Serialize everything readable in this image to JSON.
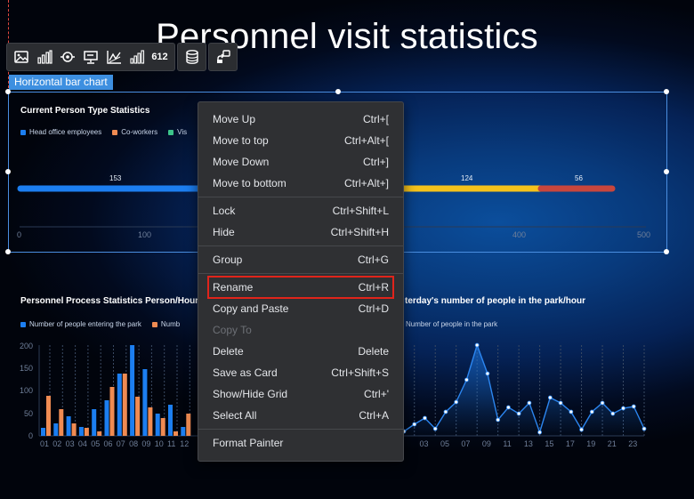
{
  "page": {
    "title": "Personnel visit statistics"
  },
  "toolbar": {
    "icons": [
      "image-icon",
      "bar-chart-icon",
      "target-icon",
      "monitor-icon",
      "line-chart-icon",
      "column-chart-icon",
      "number-icon"
    ],
    "number_label": "612"
  },
  "selection": {
    "label": "Horizontal bar chart"
  },
  "top_chart": {
    "title": "Current Person Type Statistics",
    "legend": [
      "Head office employees",
      "Co-workers",
      "Vis"
    ],
    "x_ticks": [
      "0",
      "100",
      "400",
      "500"
    ],
    "labels": [
      "153",
      "124",
      "56"
    ]
  },
  "left_chart": {
    "title": "Personnel Process Statistics Person/Hour",
    "legend": [
      "Number of people entering the park",
      "Numb"
    ],
    "y_ticks": [
      "200",
      "150",
      "100",
      "50",
      "0"
    ],
    "x_ticks": [
      "01",
      "02",
      "03",
      "04",
      "05",
      "06",
      "07",
      "08",
      "09",
      "10",
      "11",
      "12"
    ]
  },
  "right_chart": {
    "title": "terday's number of people in the park/hour",
    "legend": [
      "Number of people in the park"
    ],
    "x_ticks": [
      "03",
      "05",
      "07",
      "09",
      "11",
      "13",
      "15",
      "17",
      "19",
      "21",
      "23"
    ]
  },
  "context_menu": {
    "items": [
      {
        "label": "Move Up",
        "shortcut": "Ctrl+["
      },
      {
        "label": "Move to top",
        "shortcut": "Ctrl+Alt+["
      },
      {
        "label": "Move Down",
        "shortcut": "Ctrl+]"
      },
      {
        "label": "Move to bottom",
        "shortcut": "Ctrl+Alt+]"
      },
      {
        "label": "Lock",
        "shortcut": "Ctrl+Shift+L"
      },
      {
        "label": "Hide",
        "shortcut": "Ctrl+Shift+H"
      },
      {
        "label": "Group",
        "shortcut": "Ctrl+G"
      },
      {
        "label": "Rename",
        "shortcut": "Ctrl+R"
      },
      {
        "label": "Copy and Paste",
        "shortcut": "Ctrl+D"
      },
      {
        "label": "Copy To",
        "shortcut": ""
      },
      {
        "label": "Delete",
        "shortcut": "Delete"
      },
      {
        "label": "Save as Card",
        "shortcut": "Ctrl+Shift+S"
      },
      {
        "label": "Show/Hide Grid",
        "shortcut": "Ctrl+'"
      },
      {
        "label": "Select All",
        "shortcut": "Ctrl+A"
      },
      {
        "label": "Format Painter",
        "shortcut": ""
      }
    ]
  },
  "colors": {
    "blue": "#1c7ef0",
    "orange": "#f08b52",
    "yellow": "#f5c21b",
    "red": "#c8463d",
    "highlight": "#e0241b",
    "selection": "#3d8fe0"
  }
}
